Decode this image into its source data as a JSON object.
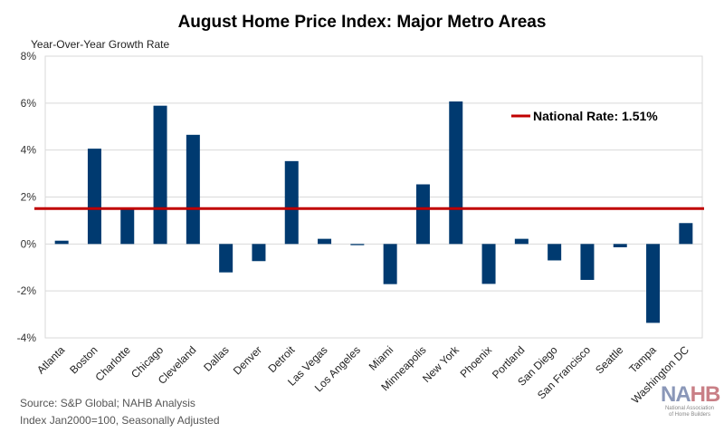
{
  "chart_data": {
    "type": "bar",
    "title": "August Home Price Index: Major Metro Areas",
    "ylabel": "Year-Over-Year Growth Rate",
    "xlabel": "",
    "ylim": [
      -4,
      8
    ],
    "yticks": [
      8,
      6,
      4,
      2,
      0,
      -2,
      -4
    ],
    "ytick_labels": [
      "8%",
      "6%",
      "4%",
      "2%",
      "0%",
      "-2%",
      "-4%"
    ],
    "grid": true,
    "categories": [
      "Atlanta",
      "Boston",
      "Charlotte",
      "Chicago",
      "Cleveland",
      "Dallas",
      "Denver",
      "Detroit",
      "Las Vegas",
      "Los Angeles",
      "Miami",
      "Minneapolis",
      "New York",
      "Phoenix",
      "Portland",
      "San Diego",
      "San Francisco",
      "Seattle",
      "Tampa",
      "Washington DC"
    ],
    "values": [
      0.14,
      4.06,
      1.52,
      5.89,
      4.65,
      -1.21,
      -0.73,
      3.53,
      0.22,
      -0.05,
      -1.71,
      2.54,
      6.07,
      -1.7,
      0.22,
      -0.7,
      -1.53,
      -0.14,
      -3.36,
      0.89
    ],
    "reference_line": {
      "value": 1.51,
      "label": "National Rate: 1.51%",
      "color": "#c00000"
    },
    "bar_color": "#003a70",
    "legend_placement": "top-right"
  },
  "footer": {
    "source": "Source: S&P Global; NAHB Analysis",
    "note": "Index Jan2000=100, Seasonally Adjusted"
  },
  "logo": {
    "text": "NAHB",
    "subtitle": "National Association of Home Builders"
  }
}
